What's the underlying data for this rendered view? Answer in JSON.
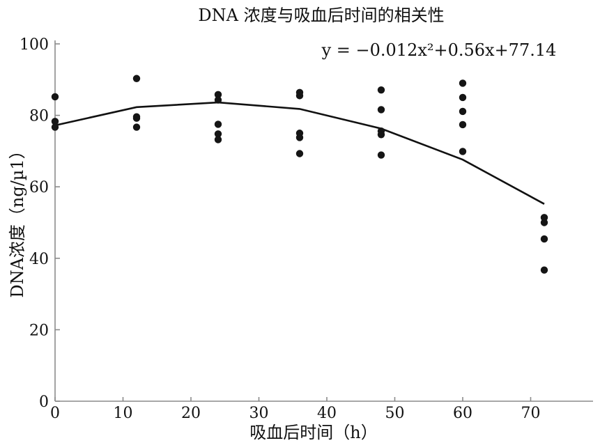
{
  "chart_data": {
    "type": "scatter",
    "title": "DNA 浓度与吸血后时间的相关性",
    "xlabel": "吸血后时间（h）",
    "ylabel": "DNA浓度（ng/µ1）",
    "equation": "y = −0.012x²+0.56x+77.14",
    "xlim": [
      0,
      80
    ],
    "ylim": [
      0,
      100
    ],
    "x_ticks": [
      0,
      10,
      20,
      30,
      40,
      50,
      60,
      70
    ],
    "y_ticks": [
      0,
      20,
      40,
      60,
      80,
      100
    ],
    "grid": false,
    "points": [
      {
        "x": 0,
        "y": 85.2
      },
      {
        "x": 0,
        "y": 78.3
      },
      {
        "x": 0,
        "y": 76.7
      },
      {
        "x": 12,
        "y": 90.3
      },
      {
        "x": 12,
        "y": 79.6
      },
      {
        "x": 12,
        "y": 79.2
      },
      {
        "x": 12,
        "y": 76.7
      },
      {
        "x": 24,
        "y": 85.8
      },
      {
        "x": 24,
        "y": 84.3
      },
      {
        "x": 24,
        "y": 77.5
      },
      {
        "x": 24,
        "y": 74.8
      },
      {
        "x": 24,
        "y": 73.2
      },
      {
        "x": 36,
        "y": 86.4
      },
      {
        "x": 36,
        "y": 85.5
      },
      {
        "x": 36,
        "y": 75.0
      },
      {
        "x": 36,
        "y": 73.8
      },
      {
        "x": 36,
        "y": 69.3
      },
      {
        "x": 48,
        "y": 87.1
      },
      {
        "x": 48,
        "y": 81.6
      },
      {
        "x": 48,
        "y": 75.6
      },
      {
        "x": 48,
        "y": 74.6
      },
      {
        "x": 48,
        "y": 68.9
      },
      {
        "x": 60,
        "y": 89.0
      },
      {
        "x": 60,
        "y": 85.0
      },
      {
        "x": 60,
        "y": 81.1
      },
      {
        "x": 60,
        "y": 77.4
      },
      {
        "x": 60,
        "y": 69.9
      },
      {
        "x": 72,
        "y": 51.4
      },
      {
        "x": 72,
        "y": 50.0
      },
      {
        "x": 72,
        "y": 45.4
      },
      {
        "x": 72,
        "y": 36.7
      }
    ],
    "fit_curve": {
      "x": [
        0,
        12,
        24,
        36,
        48,
        60,
        72
      ],
      "y": [
        77.2,
        82.3,
        83.6,
        81.8,
        76.3,
        67.6,
        55.2
      ]
    }
  }
}
